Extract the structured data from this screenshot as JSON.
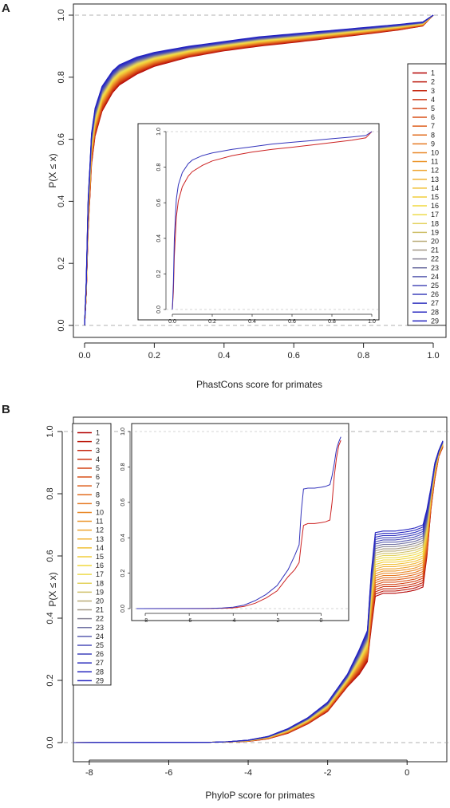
{
  "chart_data": [
    {
      "panel": "A",
      "type": "line",
      "xlabel": "PhastCons score for primates",
      "ylabel": "P(X ≤ x)",
      "xlim": [
        0,
        1
      ],
      "ylim": [
        0,
        1
      ],
      "xticks": [
        "0.0",
        "0.2",
        "0.4",
        "0.6",
        "0.8",
        "1.0"
      ],
      "yticks": [
        "0.0",
        "0.2",
        "0.4",
        "0.6",
        "0.8",
        "1.0"
      ],
      "reference_lines": [
        0,
        1
      ],
      "legend": {
        "position": "right",
        "entries": [
          "1",
          "2",
          "3",
          "4",
          "5",
          "6",
          "7",
          "8",
          "9",
          "10",
          "11",
          "12",
          "13",
          "14",
          "15",
          "16",
          "17",
          "18",
          "19",
          "20",
          "21",
          "22",
          "23",
          "24",
          "25",
          "26",
          "27",
          "28",
          "29"
        ]
      },
      "series_envelope": {
        "x": [
          0,
          0.005,
          0.01,
          0.02,
          0.03,
          0.05,
          0.08,
          0.1,
          0.15,
          0.2,
          0.3,
          0.4,
          0.5,
          0.6,
          0.7,
          0.8,
          0.9,
          0.97,
          1.0
        ],
        "series_1": [
          0.0,
          0.1,
          0.3,
          0.52,
          0.61,
          0.69,
          0.75,
          0.775,
          0.81,
          0.835,
          0.865,
          0.885,
          0.9,
          0.912,
          0.925,
          0.938,
          0.952,
          0.965,
          1.0
        ],
        "series_29": [
          0.0,
          0.15,
          0.4,
          0.62,
          0.7,
          0.77,
          0.82,
          0.84,
          0.865,
          0.88,
          0.9,
          0.915,
          0.93,
          0.94,
          0.95,
          0.96,
          0.97,
          0.978,
          1.0
        ]
      },
      "inset": {
        "xlim": [
          0,
          1
        ],
        "ylim": [
          0,
          1
        ],
        "xticks": [
          "0.0",
          "0.2",
          "0.4",
          "0.6",
          "0.8",
          "1.0"
        ],
        "yticks": [
          "0.0",
          "0.2",
          "0.4",
          "0.6",
          "0.8",
          "1.0"
        ],
        "series": [
          {
            "color": "#cc2222",
            "x": [
              0,
              0.005,
              0.01,
              0.02,
              0.03,
              0.05,
              0.08,
              0.1,
              0.15,
              0.2,
              0.3,
              0.4,
              0.5,
              0.6,
              0.7,
              0.8,
              0.9,
              0.97,
              1.0
            ],
            "y": [
              0.0,
              0.1,
              0.3,
              0.52,
              0.61,
              0.69,
              0.75,
              0.775,
              0.81,
              0.835,
              0.865,
              0.885,
              0.9,
              0.912,
              0.925,
              0.938,
              0.952,
              0.965,
              1.0
            ]
          },
          {
            "color": "#3333bb",
            "x": [
              0,
              0.005,
              0.01,
              0.02,
              0.03,
              0.05,
              0.08,
              0.1,
              0.15,
              0.2,
              0.3,
              0.4,
              0.5,
              0.6,
              0.7,
              0.8,
              0.9,
              0.97,
              1.0
            ],
            "y": [
              0.0,
              0.15,
              0.4,
              0.62,
              0.7,
              0.77,
              0.82,
              0.84,
              0.865,
              0.88,
              0.9,
              0.915,
              0.93,
              0.94,
              0.95,
              0.96,
              0.97,
              0.978,
              1.0
            ]
          }
        ]
      }
    },
    {
      "panel": "B",
      "type": "line",
      "xlabel": "PhyloP score for primates",
      "ylabel": "P(X ≤ x)",
      "xlim": [
        -8.4,
        1.0
      ],
      "ylim": [
        0,
        1
      ],
      "xticks": [
        "-8",
        "-6",
        "-4",
        "-2",
        "0"
      ],
      "yticks": [
        "0.0",
        "0.2",
        "0.4",
        "0.6",
        "0.8",
        "1.0"
      ],
      "reference_lines": [
        0,
        1
      ],
      "legend": {
        "position": "top-left",
        "entries": [
          "1",
          "2",
          "3",
          "4",
          "5",
          "6",
          "7",
          "8",
          "9",
          "10",
          "11",
          "12",
          "13",
          "14",
          "15",
          "16",
          "17",
          "18",
          "19",
          "20",
          "21",
          "22",
          "23",
          "24",
          "25",
          "26",
          "27",
          "28",
          "29"
        ]
      },
      "series_envelope": {
        "x": [
          -8.4,
          -5,
          -4.5,
          -4,
          -3.5,
          -3,
          -2.5,
          -2,
          -1.5,
          -1.2,
          -1.0,
          -0.9,
          -0.8,
          -0.6,
          -0.3,
          0.0,
          0.2,
          0.4,
          0.5,
          0.6,
          0.7,
          0.8,
          0.9
        ],
        "series_1": [
          0,
          0.001,
          0.002,
          0.004,
          0.012,
          0.03,
          0.06,
          0.1,
          0.18,
          0.22,
          0.26,
          0.37,
          0.47,
          0.48,
          0.48,
          0.485,
          0.49,
          0.5,
          0.6,
          0.75,
          0.85,
          0.92,
          0.95
        ],
        "series_29": [
          0,
          0.001,
          0.003,
          0.008,
          0.02,
          0.045,
          0.08,
          0.13,
          0.22,
          0.3,
          0.36,
          0.55,
          0.675,
          0.68,
          0.68,
          0.685,
          0.69,
          0.7,
          0.75,
          0.82,
          0.9,
          0.94,
          0.97
        ]
      },
      "inset": {
        "xlim": [
          -8.4,
          1.0
        ],
        "ylim": [
          0,
          1
        ],
        "xticks": [
          "-8",
          "-6",
          "-4",
          "-2",
          "0"
        ],
        "yticks": [
          "0.0",
          "0.2",
          "0.4",
          "0.6",
          "0.8",
          "1.0"
        ],
        "series": [
          {
            "color": "#cc2222",
            "x": [
              -8.4,
              -5,
              -4.5,
              -4,
              -3.5,
              -3,
              -2.5,
              -2,
              -1.5,
              -1.2,
              -1.0,
              -0.9,
              -0.8,
              -0.6,
              -0.3,
              0.0,
              0.2,
              0.4,
              0.5,
              0.6,
              0.7,
              0.8,
              0.9
            ],
            "y": [
              0,
              0.001,
              0.002,
              0.004,
              0.012,
              0.03,
              0.06,
              0.1,
              0.18,
              0.22,
              0.26,
              0.37,
              0.47,
              0.48,
              0.48,
              0.485,
              0.49,
              0.5,
              0.6,
              0.75,
              0.85,
              0.92,
              0.95
            ]
          },
          {
            "color": "#3333bb",
            "x": [
              -8.4,
              -5,
              -4.5,
              -4,
              -3.5,
              -3,
              -2.5,
              -2,
              -1.5,
              -1.2,
              -1.0,
              -0.9,
              -0.8,
              -0.6,
              -0.3,
              0.0,
              0.2,
              0.4,
              0.5,
              0.6,
              0.7,
              0.8,
              0.9
            ],
            "y": [
              0,
              0.001,
              0.003,
              0.008,
              0.02,
              0.045,
              0.08,
              0.13,
              0.22,
              0.3,
              0.36,
              0.55,
              0.675,
              0.68,
              0.68,
              0.685,
              0.69,
              0.7,
              0.75,
              0.82,
              0.9,
              0.94,
              0.97
            ]
          }
        ]
      }
    }
  ],
  "series_colors": [
    "#b30000",
    "#bd1a0d",
    "#c5270f",
    "#cc3512",
    "#d34315",
    "#d95018",
    "#de5e1b",
    "#e26c1f",
    "#e67a23",
    "#e98827",
    "#ec962b",
    "#eea42f",
    "#f0b233",
    "#f1c037",
    "#f2cd3b",
    "#f1d83f",
    "#eedb4d",
    "#e3d25c",
    "#cfc06a",
    "#b9ab78",
    "#a19786",
    "#878394",
    "#6e6fa2",
    "#5a5db0",
    "#4a4db8",
    "#3d40bc",
    "#3234bf",
    "#2a2ac0",
    "#2222bf"
  ]
}
